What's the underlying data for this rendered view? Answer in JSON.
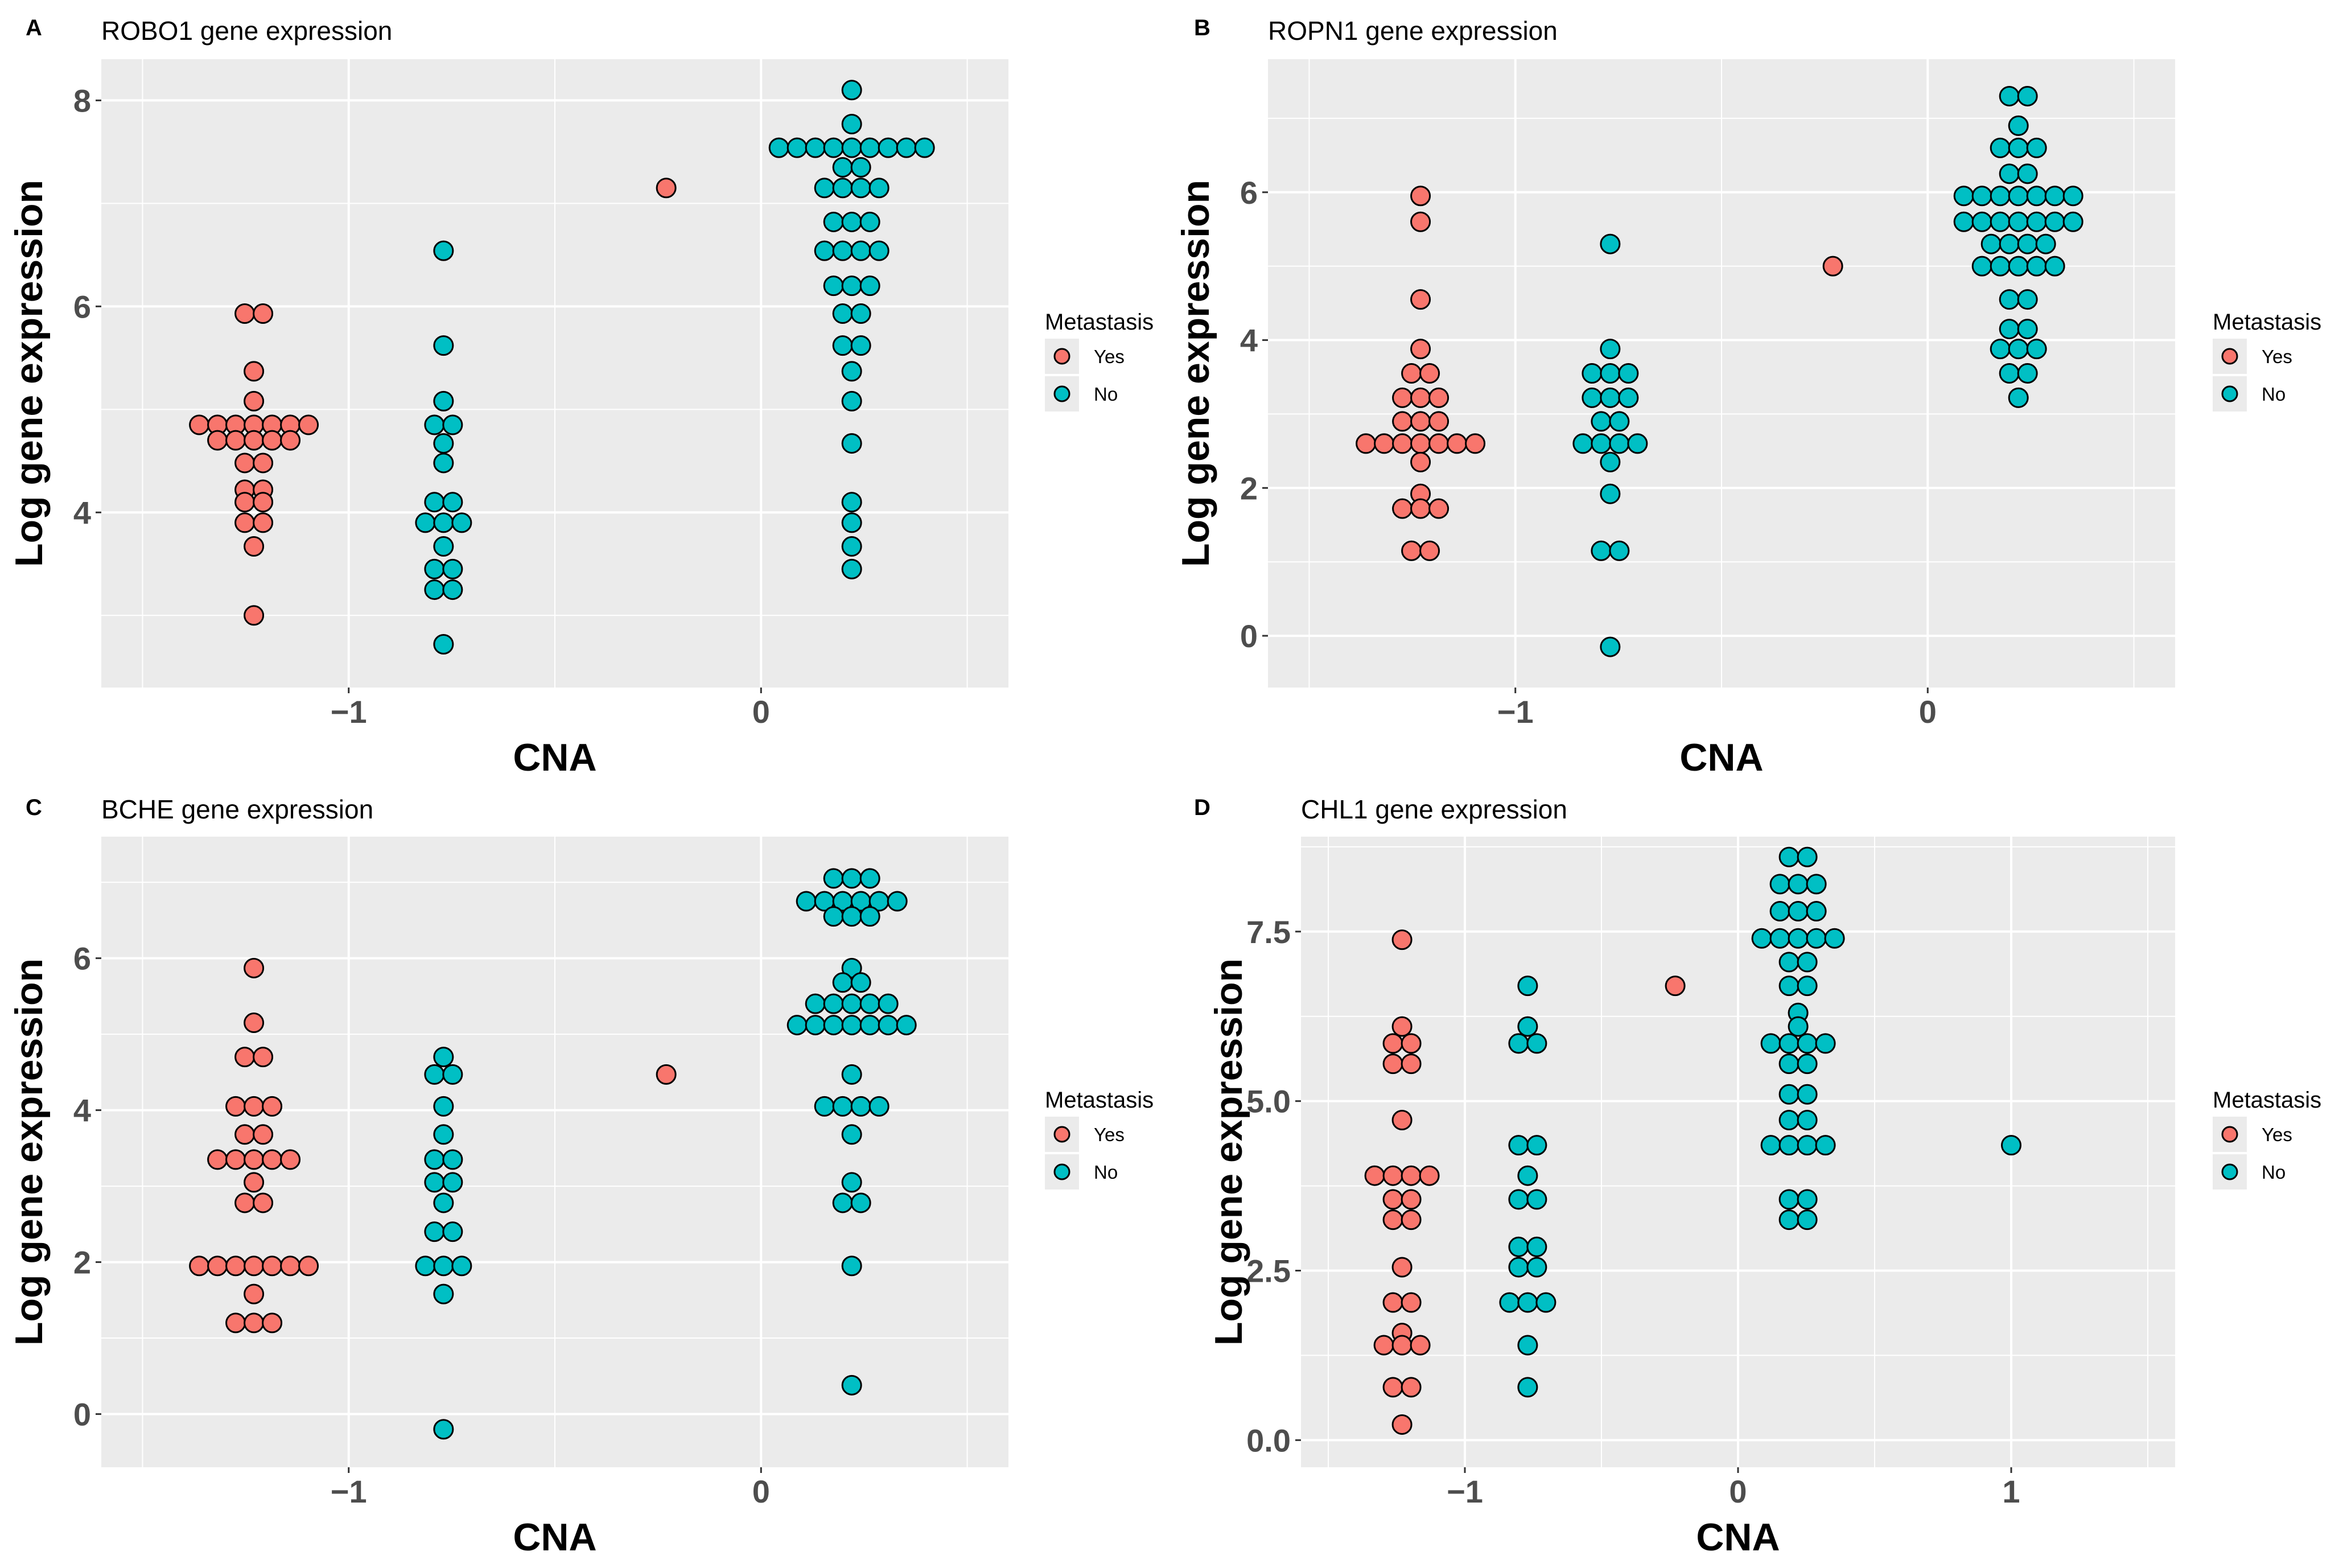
{
  "figure": {
    "colors": {
      "Yes": "#F8766D",
      "No": "#00BFC4",
      "panel_bg": "#EBEBEB",
      "grid": "#FFFFFF"
    }
  },
  "chart_data": [
    {
      "panel": "A",
      "type": "scatter",
      "title": "ROBO1 gene expression",
      "xlabel": "CNA",
      "ylabel": "Log gene expression",
      "xlim": [
        -1.6,
        0.6
      ],
      "ylim": [
        2.3,
        8.4
      ],
      "xticks": [
        -1,
        0
      ],
      "xtick_labels": [
        "−1",
        "0"
      ],
      "yticks": [
        4,
        6,
        8
      ],
      "ytick_labels": [
        "4",
        "6",
        "8"
      ],
      "legend": {
        "title": "Metastasis",
        "labels": [
          "Yes",
          "No"
        ]
      },
      "series": [
        {
          "name": "Yes",
          "x": -1.23,
          "values": [
            5.93,
            5.93,
            5.37,
            5.08,
            4.85,
            4.85,
            4.85,
            4.85,
            4.85,
            4.85,
            4.85,
            4.7,
            4.7,
            4.7,
            4.7,
            4.7,
            4.48,
            4.48,
            4.22,
            4.22,
            4.1,
            4.1,
            3.9,
            3.9,
            3.67,
            3.0
          ]
        },
        {
          "name": "Yes",
          "x": -0.23,
          "values": [
            7.15
          ]
        },
        {
          "name": "No",
          "x": -0.77,
          "values": [
            6.54,
            5.62,
            5.08,
            4.85,
            4.85,
            4.67,
            4.48,
            4.1,
            4.1,
            3.9,
            3.9,
            3.9,
            3.67,
            3.45,
            3.45,
            3.25,
            3.25,
            2.72
          ]
        },
        {
          "name": "No",
          "x": 0.22,
          "values": [
            8.1,
            7.77,
            7.54,
            7.54,
            7.54,
            7.54,
            7.54,
            7.54,
            7.54,
            7.54,
            7.54,
            7.35,
            7.35,
            7.15,
            7.15,
            7.15,
            7.15,
            6.82,
            6.82,
            6.82,
            6.54,
            6.54,
            6.54,
            6.54,
            6.2,
            6.2,
            6.2,
            5.93,
            5.93,
            5.62,
            5.62,
            5.37,
            5.08,
            4.67,
            4.1,
            3.9,
            3.67,
            3.45
          ]
        }
      ]
    },
    {
      "panel": "B",
      "type": "scatter",
      "title": "ROPN1 gene expression",
      "xlabel": "CNA",
      "ylabel": "Log gene expression",
      "xlim": [
        -1.6,
        0.6
      ],
      "ylim": [
        -0.7,
        7.8
      ],
      "xticks": [
        -1,
        0
      ],
      "xtick_labels": [
        "−1",
        "0"
      ],
      "yticks": [
        0,
        2,
        4,
        6
      ],
      "ytick_labels": [
        "0",
        "2",
        "4",
        "6"
      ],
      "legend": {
        "title": "Metastasis",
        "labels": [
          "Yes",
          "No"
        ]
      },
      "series": [
        {
          "name": "Yes",
          "x": -1.23,
          "values": [
            5.95,
            5.6,
            4.55,
            3.88,
            3.55,
            3.55,
            3.22,
            3.22,
            3.22,
            2.9,
            2.9,
            2.9,
            2.6,
            2.6,
            2.6,
            2.6,
            2.6,
            2.6,
            2.6,
            2.35,
            1.92,
            1.72,
            1.72,
            1.72,
            1.15,
            1.15
          ]
        },
        {
          "name": "Yes",
          "x": -0.23,
          "values": [
            5.0
          ]
        },
        {
          "name": "No",
          "x": -0.77,
          "values": [
            5.3,
            3.88,
            3.55,
            3.55,
            3.55,
            3.22,
            3.22,
            3.22,
            2.9,
            2.9,
            2.6,
            2.6,
            2.6,
            2.6,
            2.35,
            1.92,
            1.15,
            1.15,
            -0.15
          ]
        },
        {
          "name": "No",
          "x": 0.22,
          "values": [
            7.3,
            7.3,
            6.9,
            6.6,
            6.6,
            6.6,
            6.25,
            6.25,
            5.95,
            5.95,
            5.95,
            5.95,
            5.95,
            5.95,
            5.95,
            5.6,
            5.6,
            5.6,
            5.6,
            5.6,
            5.6,
            5.6,
            5.3,
            5.3,
            5.3,
            5.3,
            5.0,
            5.0,
            5.0,
            5.0,
            5.0,
            4.55,
            4.55,
            4.15,
            4.15,
            3.88,
            3.88,
            3.88,
            3.55,
            3.55,
            3.22
          ]
        }
      ]
    },
    {
      "panel": "C",
      "type": "scatter",
      "title": "BCHE gene expression",
      "xlabel": "CNA",
      "ylabel": "Log gene expression",
      "xlim": [
        -1.6,
        0.6
      ],
      "ylim": [
        -0.7,
        7.6
      ],
      "xticks": [
        -1,
        0
      ],
      "xtick_labels": [
        "−1",
        "0"
      ],
      "yticks": [
        0,
        2,
        4,
        6
      ],
      "ytick_labels": [
        "0",
        "2",
        "4",
        "6"
      ],
      "legend": {
        "title": "Metastasis",
        "labels": [
          "Yes",
          "No"
        ]
      },
      "series": [
        {
          "name": "Yes",
          "x": -1.23,
          "values": [
            5.87,
            5.15,
            4.7,
            4.7,
            4.05,
            4.05,
            4.05,
            3.68,
            3.68,
            3.35,
            3.35,
            3.35,
            3.35,
            3.35,
            3.05,
            2.78,
            2.78,
            1.95,
            1.95,
            1.95,
            1.95,
            1.95,
            1.95,
            1.95,
            1.58,
            1.2,
            1.2,
            1.2
          ]
        },
        {
          "name": "Yes",
          "x": -0.23,
          "values": [
            4.47
          ]
        },
        {
          "name": "No",
          "x": -0.77,
          "values": [
            4.7,
            4.47,
            4.47,
            4.05,
            3.68,
            3.35,
            3.35,
            3.05,
            3.05,
            2.78,
            2.4,
            2.4,
            1.95,
            1.95,
            1.95,
            1.58,
            -0.2
          ]
        },
        {
          "name": "No",
          "x": 0.22,
          "values": [
            7.05,
            7.05,
            7.05,
            6.75,
            6.75,
            6.75,
            6.75,
            6.75,
            6.75,
            6.55,
            6.55,
            6.55,
            5.87,
            5.68,
            5.68,
            5.4,
            5.4,
            5.4,
            5.4,
            5.4,
            5.12,
            5.12,
            5.12,
            5.12,
            5.12,
            5.12,
            5.12,
            4.47,
            4.05,
            4.05,
            4.05,
            4.05,
            3.68,
            3.05,
            2.78,
            2.78,
            1.95,
            0.38
          ]
        }
      ]
    },
    {
      "panel": "D",
      "type": "scatter",
      "title": "CHL1 gene expression",
      "xlabel": "CNA",
      "ylabel": "Log gene expression",
      "xlim": [
        -1.6,
        1.6
      ],
      "ylim": [
        -0.4,
        8.9
      ],
      "xticks": [
        -1,
        0,
        1
      ],
      "xtick_labels": [
        "−1",
        "0",
        "1"
      ],
      "yticks": [
        0,
        2.5,
        5,
        7.5
      ],
      "ytick_labels": [
        "0.0",
        "2.5",
        "5.0",
        "7.5"
      ],
      "legend": {
        "title": "Metastasis",
        "labels": [
          "Yes",
          "No"
        ]
      },
      "series": [
        {
          "name": "Yes",
          "x": -1.23,
          "values": [
            7.38,
            6.1,
            5.85,
            5.85,
            5.55,
            5.55,
            4.72,
            3.9,
            3.9,
            3.9,
            3.9,
            3.55,
            3.55,
            3.25,
            3.25,
            2.55,
            2.03,
            2.03,
            1.58,
            1.4,
            1.4,
            1.4,
            0.78,
            0.78,
            0.23
          ]
        },
        {
          "name": "Yes",
          "x": -0.23,
          "values": [
            6.7
          ]
        },
        {
          "name": "No",
          "x": -0.77,
          "values": [
            6.7,
            6.1,
            5.85,
            5.85,
            4.35,
            4.35,
            3.9,
            3.55,
            3.55,
            2.85,
            2.85,
            2.55,
            2.55,
            2.03,
            2.03,
            2.03,
            1.4,
            0.78
          ]
        },
        {
          "name": "No",
          "x": 0.22,
          "values": [
            8.6,
            8.6,
            8.2,
            8.2,
            8.2,
            7.8,
            7.8,
            7.8,
            7.4,
            7.4,
            7.4,
            7.4,
            7.4,
            7.05,
            7.05,
            6.7,
            6.7,
            6.3,
            6.1,
            5.85,
            5.85,
            5.85,
            5.85,
            5.55,
            5.55,
            5.1,
            5.1,
            4.72,
            4.72,
            4.35,
            4.35,
            4.35,
            4.35,
            3.55,
            3.55,
            3.25,
            3.25
          ]
        },
        {
          "name": "No",
          "x": 1.0,
          "values": [
            4.35
          ]
        }
      ]
    }
  ]
}
